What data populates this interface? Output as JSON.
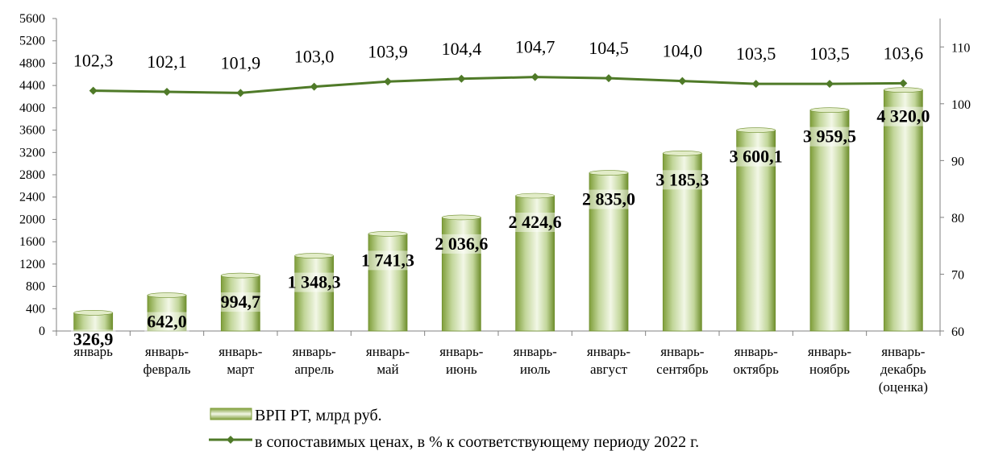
{
  "chart_data": {
    "type": "bar",
    "categories": [
      [
        "январь"
      ],
      [
        "январь-",
        "февраль"
      ],
      [
        "январь-",
        "март"
      ],
      [
        "январь-",
        "апрель"
      ],
      [
        "январь-",
        "май"
      ],
      [
        "январь-",
        "июнь"
      ],
      [
        "январь-",
        "июль"
      ],
      [
        "январь-",
        "август"
      ],
      [
        "январь-",
        "сентябрь"
      ],
      [
        "январь-",
        "октябрь"
      ],
      [
        "январь-",
        "ноябрь"
      ],
      [
        "январь-",
        "декабрь",
        "(оценка)"
      ]
    ],
    "series": [
      {
        "name": "ВРП РТ, млрд руб.",
        "type": "bar",
        "axis": "left",
        "values": [
          326.9,
          642.0,
          994.7,
          1348.3,
          1741.3,
          2036.6,
          2424.6,
          2835.0,
          3185.3,
          3600.1,
          3959.5,
          4320.0
        ],
        "labels": [
          "326,9",
          "642,0",
          "994,7",
          "1 348,3",
          "1 741,3",
          "2 036,6",
          "2 424,6",
          "2 835,0",
          "3 185,3",
          "3 600,1",
          "3 959,5",
          "4 320,0"
        ]
      },
      {
        "name": "в сопоставимых ценах, в % к соответствующему периоду 2022 г.",
        "type": "line",
        "axis": "right",
        "values": [
          102.3,
          102.1,
          101.9,
          103.0,
          103.9,
          104.4,
          104.7,
          104.5,
          104.0,
          103.5,
          103.5,
          103.6
        ],
        "labels": [
          "102,3",
          "102,1",
          "101,9",
          "103,0",
          "103,9",
          "104,4",
          "104,7",
          "104,5",
          "104,0",
          "103,5",
          "103,5",
          "103,6"
        ]
      }
    ],
    "y_left": {
      "min": 0,
      "max": 5600,
      "step": 400,
      "ticks": [
        "0",
        "400",
        "800",
        "1200",
        "1600",
        "2000",
        "2400",
        "2800",
        "3200",
        "3600",
        "4000",
        "4400",
        "4800",
        "5200",
        "5600"
      ]
    },
    "y_right": {
      "min": 60,
      "max": 115,
      "step": 10,
      "ticks": [
        "60",
        "70",
        "80",
        "90",
        "100",
        "110"
      ]
    },
    "grid": false,
    "legend_position": "bottom",
    "colors": {
      "bar_dark": "#7f9e3a",
      "bar_mid": "#c2d69a",
      "bar_light": "#f2f7e6",
      "line": "#4f7a28",
      "axis": "#808080"
    }
  }
}
